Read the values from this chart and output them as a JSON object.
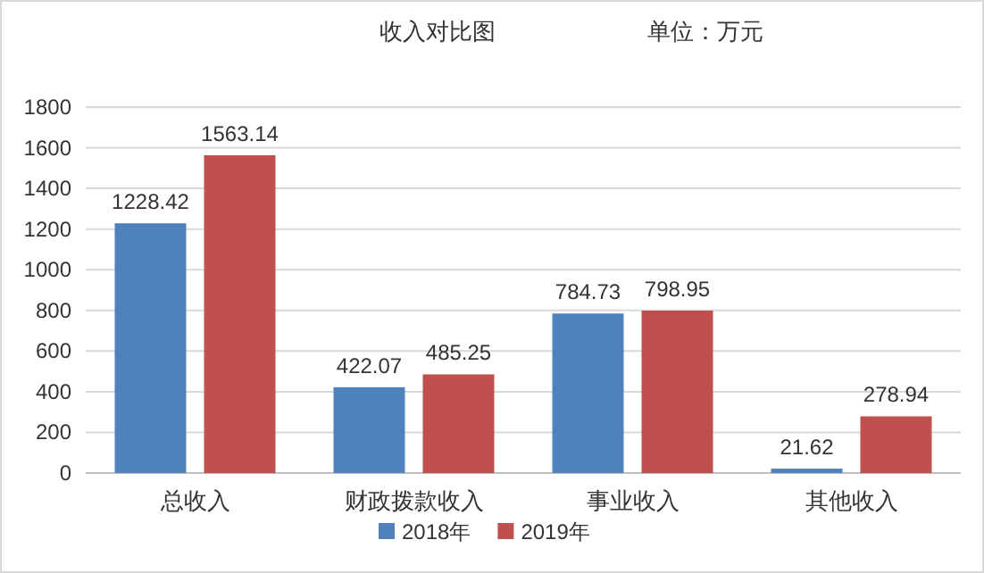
{
  "chart_data": {
    "type": "bar",
    "title": "收入对比图",
    "annotations": [
      "单位：万元"
    ],
    "categories": [
      "总收入",
      "财政拨款收入",
      "事业收入",
      "其他收入"
    ],
    "series": [
      {
        "name": "2018年",
        "color": "#4f81bd",
        "values": [
          1228.42,
          422.07,
          784.73,
          21.62
        ]
      },
      {
        "name": "2019年",
        "color": "#c0504d",
        "values": [
          1563.14,
          485.25,
          798.95,
          278.94
        ]
      }
    ],
    "ylim": [
      0,
      1800
    ],
    "yticks": [
      0,
      200,
      400,
      600,
      800,
      1000,
      1200,
      1400,
      1600,
      1800
    ],
    "grid": "y",
    "legend": "bottom",
    "data_labels": true
  }
}
